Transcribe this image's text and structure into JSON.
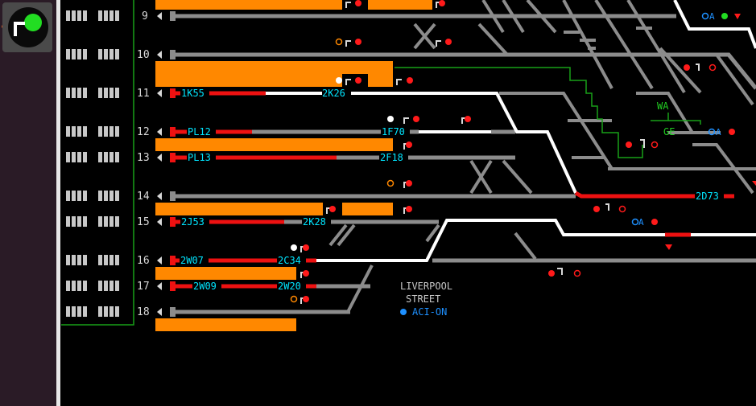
{
  "toolbar": {
    "signal_tool_icon": "signal-ground-icon"
  },
  "rows": [
    {
      "id": "9",
      "label": "9"
    },
    {
      "id": "10",
      "label": "10"
    },
    {
      "id": "11",
      "label": "11"
    },
    {
      "id": "12",
      "label": "12"
    },
    {
      "id": "13",
      "label": "13"
    },
    {
      "id": "14",
      "label": "14"
    },
    {
      "id": "15",
      "label": "15"
    },
    {
      "id": "16",
      "label": "16"
    },
    {
      "id": "17",
      "label": "17"
    },
    {
      "id": "18",
      "label": "18"
    }
  ],
  "headcodes": {
    "h_1K55": "1K55",
    "h_2K26": "2K26",
    "h_PL12": "PL12",
    "h_1F70": "1F70",
    "h_PL13": "PL13",
    "h_2F18": "2F18",
    "h_2J53": "2J53",
    "h_2K28": "2K28",
    "h_2W07": "2W07",
    "h_2C34": "2C34",
    "h_2W09": "2W09",
    "h_2W20": "2W20",
    "h_2D73": "2D73"
  },
  "junctions": {
    "wa": "WA",
    "ge": "GE"
  },
  "auto_labels": {
    "a1": "A",
    "a2": "A",
    "a3": "A"
  },
  "station": {
    "line1": "LIVERPOOL",
    "line2": "STREET",
    "aci": "ACI-ON"
  },
  "colors": {
    "track": "#8c8c8c",
    "route": "#ffffff",
    "occupied": "#ee1111",
    "platform": "#ff8800",
    "headcode": "#00e5ff",
    "signal_red": "#ff1a1a",
    "signal_green": "#22dd22",
    "junction_line": "#18a018",
    "auto": "#1e90ff"
  }
}
